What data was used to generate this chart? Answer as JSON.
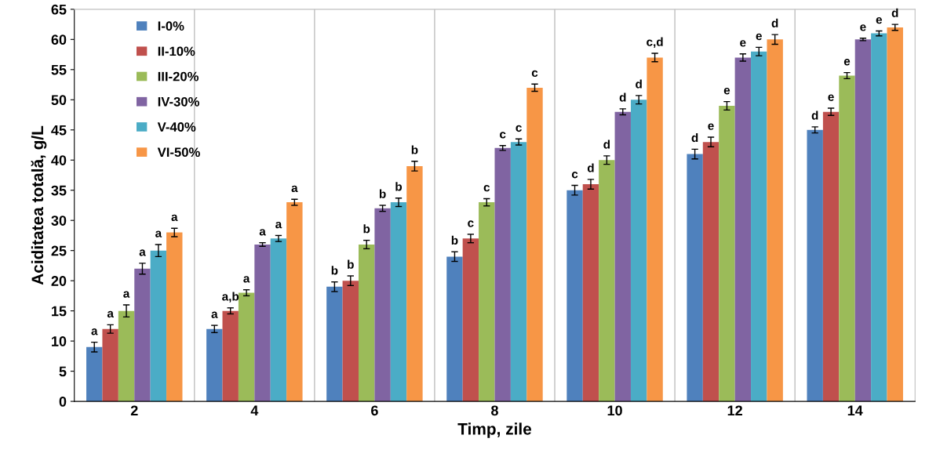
{
  "chart_data": {
    "type": "bar",
    "xlabel": "Timp, zile",
    "ylabel": "Aciditatea totală, g/L",
    "categories": [
      "2",
      "4",
      "6",
      "8",
      "10",
      "12",
      "14"
    ],
    "ylim": [
      0,
      65
    ],
    "yticks": [
      0,
      5,
      10,
      15,
      20,
      25,
      30,
      35,
      40,
      45,
      50,
      55,
      60,
      65
    ],
    "grid": "x",
    "legend": "top left",
    "series": [
      {
        "name": "I-0%",
        "color": "#4f81bd",
        "values": [
          9,
          12,
          19,
          24,
          35,
          41,
          45
        ],
        "errors": [
          0.8,
          0.6,
          0.8,
          0.8,
          0.8,
          0.8,
          0.5
        ],
        "value_labels": [
          "a",
          "a",
          "b",
          "b",
          "c",
          "d",
          "d"
        ]
      },
      {
        "name": "II-10%",
        "color": "#c0504d",
        "values": [
          12,
          15,
          20,
          27,
          36,
          43,
          48
        ],
        "errors": [
          0.7,
          0.5,
          0.8,
          0.7,
          0.8,
          0.8,
          0.6
        ],
        "value_labels": [
          "a",
          "a,b",
          "b",
          "c",
          "d",
          "e",
          "e"
        ]
      },
      {
        "name": "III-20%",
        "color": "#9bbb59",
        "values": [
          15,
          18,
          26,
          33,
          40,
          49,
          54
        ],
        "errors": [
          1,
          0.5,
          0.7,
          0.6,
          0.7,
          0.7,
          0.5
        ],
        "value_labels": [
          "a",
          "a",
          "b",
          "c",
          "d",
          "e",
          "e"
        ]
      },
      {
        "name": "IV-30%",
        "color": "#8064a2",
        "values": [
          22,
          26,
          32,
          42,
          48,
          57,
          60
        ],
        "errors": [
          0.9,
          0.3,
          0.5,
          0.4,
          0.5,
          0.6,
          0.2
        ],
        "value_labels": [
          "a",
          "a",
          "b",
          "c",
          "d",
          "e",
          "e"
        ]
      },
      {
        "name": "V-40%",
        "color": "#4bacc6",
        "values": [
          25,
          27,
          33,
          43,
          50,
          58,
          61
        ],
        "errors": [
          1,
          0.5,
          0.7,
          0.5,
          0.7,
          0.7,
          0.4
        ],
        "value_labels": [
          "a",
          "a",
          "b",
          "c",
          "d",
          "e",
          "e"
        ]
      },
      {
        "name": "VI-50%",
        "color": "#f79646",
        "values": [
          28,
          33,
          39,
          52,
          57,
          60,
          62
        ],
        "errors": [
          0.7,
          0.5,
          0.8,
          0.6,
          0.7,
          0.8,
          0.5
        ],
        "value_labels": [
          "a",
          "a",
          "b",
          "c",
          "c,d",
          "d",
          "d"
        ]
      }
    ]
  }
}
